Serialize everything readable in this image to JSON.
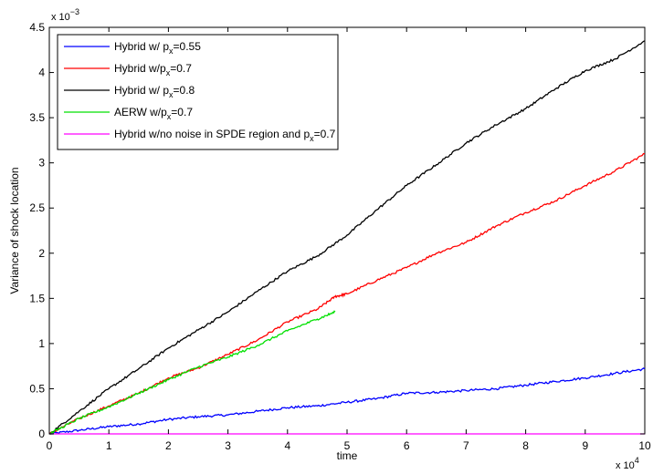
{
  "chart_data": {
    "type": "line",
    "title": "",
    "xlabel": "time",
    "ylabel": "Variance of shock location",
    "xlim": [
      0,
      10
    ],
    "ylim": [
      0,
      4.5
    ],
    "x_multiplier": {
      "base": "x 10",
      "exp": "4"
    },
    "y_multiplier": {
      "base": "x 10",
      "exp": "−3"
    },
    "x_ticks": [
      0,
      1,
      2,
      3,
      4,
      5,
      6,
      7,
      8,
      9,
      10
    ],
    "x_tick_labels": [
      "0",
      "1",
      "2",
      "3",
      "4",
      "5",
      "6",
      "7",
      "8",
      "9",
      "10"
    ],
    "y_ticks": [
      0,
      0.5,
      1,
      1.5,
      2,
      2.5,
      3,
      3.5,
      4,
      4.5
    ],
    "y_tick_labels": [
      "0",
      "0.5",
      "1",
      "1.5",
      "2",
      "2.5",
      "3",
      "3.5",
      "4",
      "4.5"
    ],
    "grid": false,
    "legend_position": "top-left",
    "series": [
      {
        "legend": {
          "prefix": "Hybrid w/ p",
          "sub": "x",
          "suffix": "=0.55"
        },
        "color": "#0000ff",
        "x": [
          0,
          0.5,
          1,
          1.5,
          2,
          2.5,
          3,
          3.5,
          4,
          4.5,
          5,
          5.5,
          6,
          6.5,
          7,
          7.5,
          8,
          8.5,
          9,
          9.5,
          10
        ],
        "y": [
          0,
          0.04,
          0.08,
          0.11,
          0.16,
          0.19,
          0.21,
          0.25,
          0.29,
          0.31,
          0.35,
          0.39,
          0.45,
          0.46,
          0.48,
          0.5,
          0.54,
          0.58,
          0.62,
          0.67,
          0.72
        ]
      },
      {
        "legend": {
          "prefix": "Hybrid w/p",
          "sub": "x",
          "suffix": "=0.7"
        },
        "color": "#ff0000",
        "x": [
          0,
          0.5,
          1,
          1.5,
          2,
          2.5,
          3,
          3.5,
          4,
          4.5,
          4.8,
          5,
          5.5,
          6,
          6.5,
          7,
          7.5,
          8,
          8.5,
          9,
          9.5,
          10
        ],
        "y": [
          0,
          0.17,
          0.31,
          0.45,
          0.62,
          0.73,
          0.88,
          1.04,
          1.24,
          1.38,
          1.52,
          1.55,
          1.7,
          1.84,
          2.0,
          2.12,
          2.3,
          2.45,
          2.58,
          2.75,
          2.91,
          3.1
        ]
      },
      {
        "legend": {
          "prefix": "Hybrid w/ p",
          "sub": "x",
          "suffix": "=0.8"
        },
        "color": "#000000",
        "x": [
          0,
          0.5,
          1,
          1.5,
          2,
          2.5,
          3,
          3.5,
          4,
          4.5,
          5,
          5.5,
          6,
          6.5,
          7,
          7.5,
          8,
          8.5,
          9,
          9.5,
          10
        ],
        "y": [
          0,
          0.25,
          0.5,
          0.72,
          0.95,
          1.15,
          1.35,
          1.58,
          1.8,
          1.97,
          2.2,
          2.48,
          2.75,
          2.98,
          3.22,
          3.42,
          3.6,
          3.82,
          4.02,
          4.15,
          4.35
        ]
      },
      {
        "legend": {
          "prefix": "AERW w/p",
          "sub": "x",
          "suffix": "=0.7"
        },
        "color": "#00e000",
        "x": [
          0,
          0.5,
          1,
          1.5,
          2,
          2.5,
          3,
          3.5,
          4,
          4.5,
          4.8
        ],
        "y": [
          0,
          0.17,
          0.3,
          0.45,
          0.6,
          0.74,
          0.85,
          0.98,
          1.14,
          1.27,
          1.35
        ]
      },
      {
        "legend": {
          "prefix": "Hybrid w/no noise in SPDE region and p",
          "sub": "x",
          "suffix": "=0.7"
        },
        "color": "#ff00ff",
        "x": [
          0,
          10
        ],
        "y": [
          0,
          0
        ]
      }
    ]
  }
}
